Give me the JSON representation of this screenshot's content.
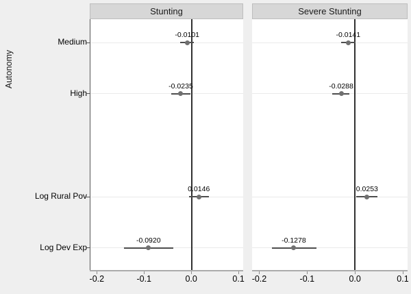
{
  "figure": {
    "background": "#efefef",
    "panel_bg": "#ffffff",
    "header_bg": "#d7d7d7",
    "grid_color": "#eaeaea",
    "zero_line_color": "#303030",
    "ci_color": "#4d4d4d",
    "marker_color": "#707070",
    "axis_line_color": "#ababab",
    "tick_color": "#8c8c8c"
  },
  "chart_data": {
    "type": "scatter",
    "subtype": "coefficient-forest-plot",
    "group_label": "Autonomy",
    "group_span_categories": [
      "Medium",
      "High"
    ],
    "categories": [
      "Medium",
      "High",
      "Log Rural Pov",
      "Log Dev Exp"
    ],
    "panels": [
      {
        "title": "Stunting",
        "estimates": [
          -0.0101,
          -0.0235,
          0.0146,
          -0.092
        ],
        "labels": [
          "-0.0101",
          "-0.0235",
          "0.0146",
          "-0.0920"
        ],
        "ci_low": [
          -0.0246,
          -0.0435,
          -0.006,
          -0.144
        ],
        "ci_high": [
          0.0044,
          -0.0035,
          0.036,
          -0.04
        ]
      },
      {
        "title": "Severe Stunting",
        "estimates": [
          -0.0141,
          -0.0288,
          0.0253,
          -0.1278
        ],
        "labels": [
          "-0.0141",
          "-0.0288",
          "0.0253",
          "-0.1278"
        ],
        "ci_low": [
          -0.029,
          -0.047,
          0.003,
          -0.174
        ],
        "ci_high": [
          0.0005,
          -0.011,
          0.047,
          -0.081
        ]
      }
    ],
    "xticks": [
      -0.2,
      -0.1,
      0,
      0.1
    ],
    "xtick_labels": [
      "-0.2",
      "-0.1",
      "0.0",
      "0.1"
    ],
    "xlim": [
      -0.215,
      0.11
    ],
    "zero_line": true,
    "grid": "horizontal",
    "row_fractions": [
      0.093,
      0.297,
      0.706,
      0.91
    ],
    "legend": "none"
  }
}
